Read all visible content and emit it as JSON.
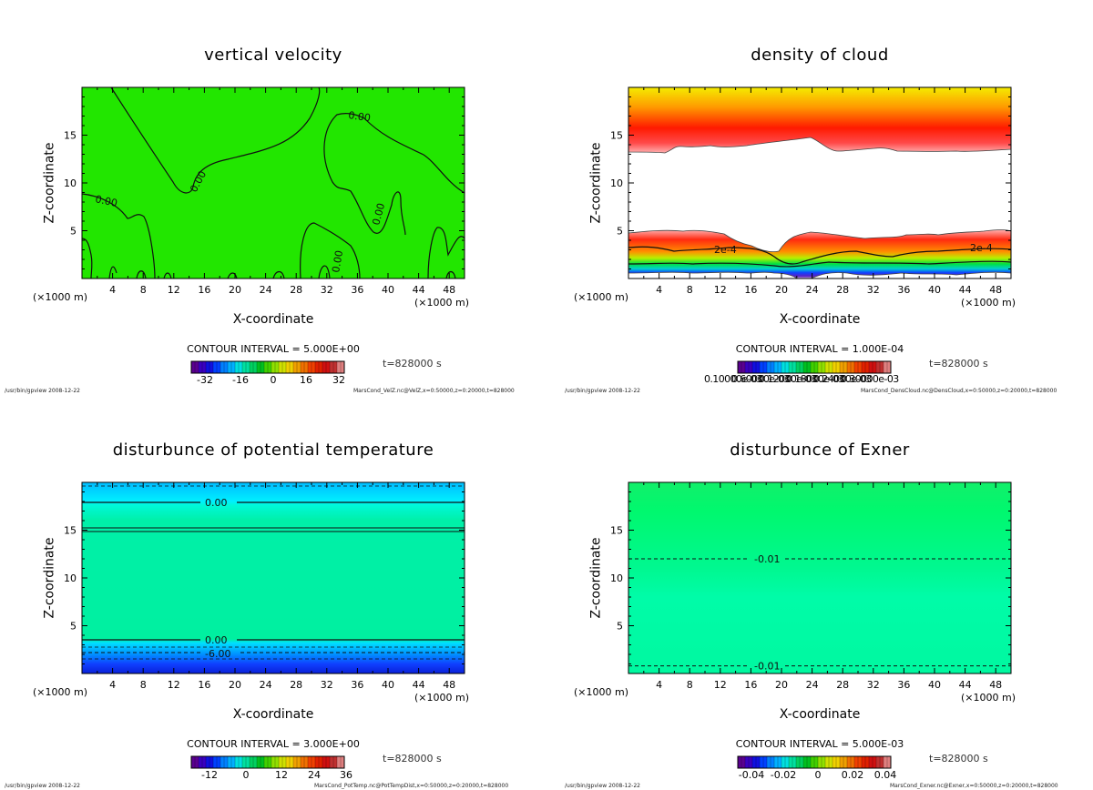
{
  "chart_data": [
    {
      "type": "heatmap",
      "title": "vertical velocity",
      "xlabel": "X-coordinate",
      "ylabel": "Z-coordinate",
      "x_unit_left": "(×1000 m)",
      "x_unit_right": "(×1000 m)",
      "xlim": [
        0,
        50
      ],
      "ylim": [
        0,
        20
      ],
      "xticks": [
        "4",
        "8",
        "12",
        "16",
        "20",
        "24",
        "28",
        "32",
        "36",
        "40",
        "44",
        "48"
      ],
      "yticks": [
        "5",
        "10",
        "15"
      ],
      "contour_interval": "CONTOUR INTERVAL = 5.000E+00",
      "time": "t=828000 s",
      "colorbar_ticks": [
        "-32",
        "-16",
        "0",
        "16",
        "32"
      ],
      "colorbar_range": [
        -40,
        40
      ],
      "contour_labels": [
        "0.00",
        "0.00",
        "0.00",
        "0.00",
        "0.00"
      ],
      "footer_left": "/usr/bin/gpview  2008-12-22",
      "footer_right": "MarsCond_VelZ.nc@VelZ,x=0:50000,z=0:20000,t=828000",
      "field_color": "#22e600"
    },
    {
      "type": "heatmap",
      "title": "density of cloud",
      "xlabel": "X-coordinate",
      "ylabel": "Z-coordinate",
      "x_unit_left": "(×1000 m)",
      "x_unit_right": "(×1000 m)",
      "xlim": [
        0,
        50
      ],
      "ylim": [
        0,
        20
      ],
      "xticks": [
        "4",
        "8",
        "12",
        "16",
        "20",
        "24",
        "28",
        "32",
        "36",
        "40",
        "44",
        "48"
      ],
      "yticks": [
        "5",
        "10",
        "15"
      ],
      "contour_interval": "CONTOUR INTERVAL = 1.000E-04",
      "time": "t=828000 s",
      "colorbar_label_text": "0.10000e-03",
      "colorbar_overlap_labels": [
        "0.10000e-03",
        "0.60000e-03",
        "0.12000e-03",
        "0.18000e-03",
        "0.24000e-03",
        "0.30000e-03"
      ],
      "contour_labels": [
        "2e-4",
        "2e-4"
      ],
      "footer_left": "/usr/bin/gpview  2008-12-22",
      "footer_right": "MarsCond_DensCloud.nc@DensCloud,x=0:50000,z=0:20000,t=828000"
    },
    {
      "type": "heatmap",
      "title": "disturbunce of potential temperature",
      "xlabel": "X-coordinate",
      "ylabel": "Z-coordinate",
      "x_unit_left": "(×1000 m)",
      "x_unit_right": "(×1000 m)",
      "xlim": [
        0,
        50
      ],
      "ylim": [
        0,
        20
      ],
      "xticks": [
        "4",
        "8",
        "12",
        "16",
        "20",
        "24",
        "28",
        "32",
        "36",
        "40",
        "44",
        "48"
      ],
      "yticks": [
        "5",
        "10",
        "15"
      ],
      "contour_interval": "CONTOUR INTERVAL = 3.000E+00",
      "time": "t=828000 s",
      "colorbar_ticks": [
        "-12",
        "0",
        "12",
        "24",
        "36"
      ],
      "colorbar_range": [
        -20,
        40
      ],
      "contour_labels": [
        "0.00",
        "0.00",
        "-6.00"
      ],
      "footer_left": "/usr/bin/gpview  2008-12-22",
      "footer_right": "MarsCond_PotTemp.nc@PotTempDist,x=0:50000,z=0:20000,t=828000"
    },
    {
      "type": "heatmap",
      "title": "disturbunce of Exner",
      "xlabel": "X-coordinate",
      "ylabel": "Z-coordinate",
      "x_unit_left": "(×1000 m)",
      "x_unit_right": "(×1000 m)",
      "xlim": [
        0,
        50
      ],
      "ylim": [
        0,
        20
      ],
      "xticks": [
        "4",
        "8",
        "12",
        "16",
        "20",
        "24",
        "28",
        "32",
        "36",
        "40",
        "44",
        "48"
      ],
      "yticks": [
        "5",
        "10",
        "15"
      ],
      "contour_interval": "CONTOUR INTERVAL = 5.000E-03",
      "time": "t=828000 s",
      "colorbar_ticks": [
        "-0.04",
        "-0.02",
        "0",
        "0.02",
        "0.04"
      ],
      "colorbar_range": [
        -0.05,
        0.05
      ],
      "contour_labels": [
        "-0.01",
        "-0.01"
      ],
      "contour_levels_z": [
        12,
        0.8
      ],
      "footer_left": "/usr/bin/gpview  2008-12-22",
      "footer_right": "MarsCond_Exner.nc@Exner,x=0:50000,z=0:20000,t=828000"
    }
  ]
}
